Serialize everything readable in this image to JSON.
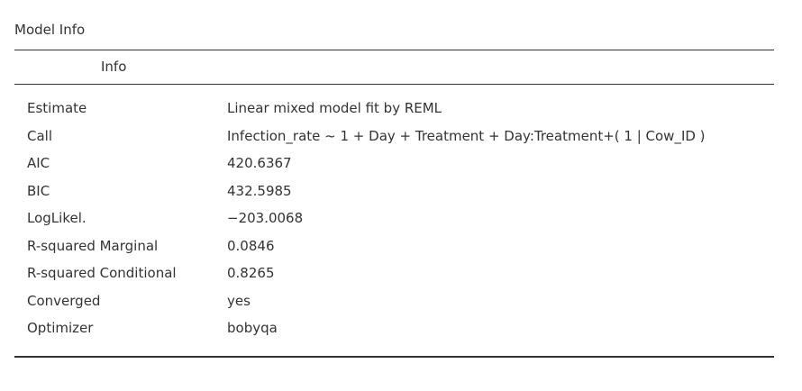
{
  "panel": {
    "title": "Model Info",
    "header": "Info"
  },
  "rows": [
    {
      "label": "Estimate",
      "value": "Linear mixed model fit by REML"
    },
    {
      "label": "Call",
      "value": "Infection_rate ~ 1 + Day + Treatment + Day:Treatment+( 1 | Cow_ID )"
    },
    {
      "label": "AIC",
      "value": "420.6367"
    },
    {
      "label": "BIC",
      "value": "432.5985"
    },
    {
      "label": "LogLikel.",
      "value": "−203.0068"
    },
    {
      "label": "R-squared Marginal",
      "value": "0.0846"
    },
    {
      "label": "R-squared Conditional",
      "value": "0.8265"
    },
    {
      "label": "Converged",
      "value": "yes"
    },
    {
      "label": "Optimizer",
      "value": "bobyqa"
    }
  ]
}
